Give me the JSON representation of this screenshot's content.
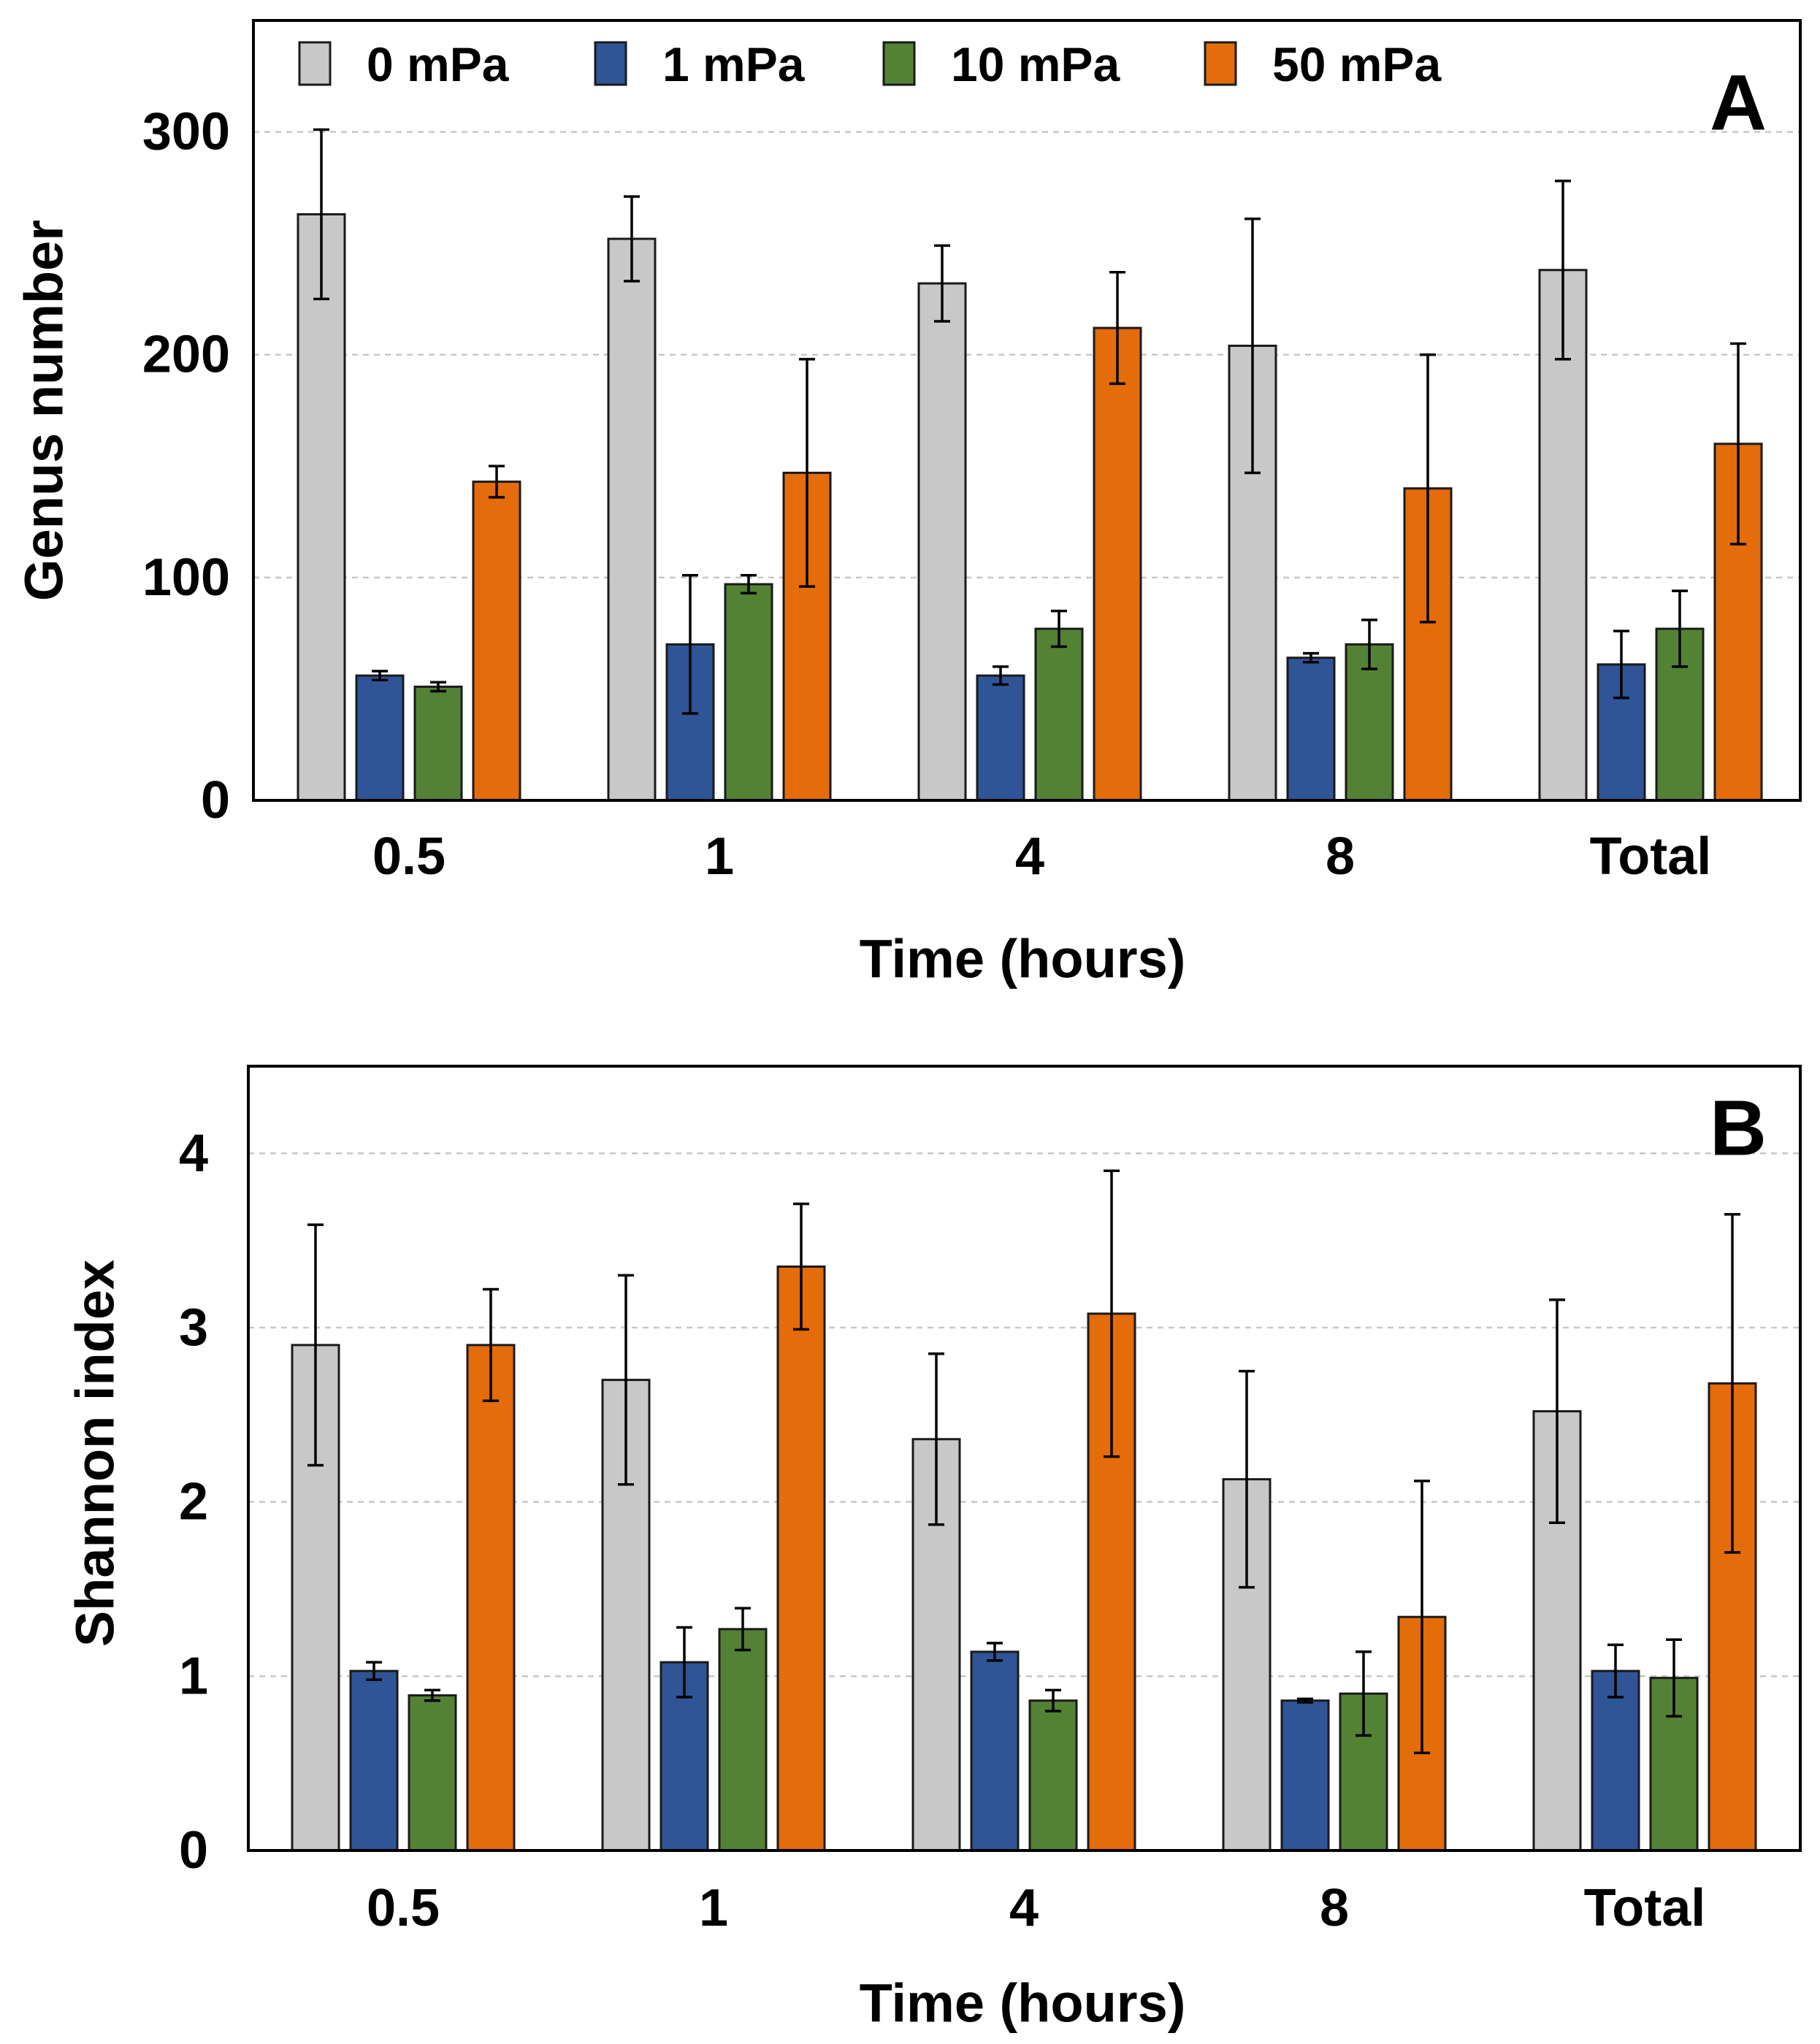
{
  "series_colors": [
    "#c8c8c8",
    "#2f5597",
    "#548235",
    "#e46c0a"
  ],
  "legend": [
    "0 mPa",
    "1 mPa",
    "10 mPa",
    "50 mPa"
  ],
  "chart_data": [
    {
      "type": "bar",
      "panel": "A",
      "title": "",
      "xlabel": "Time (hours)",
      "ylabel": "Genus number",
      "categories": [
        "0.5",
        "1",
        "4",
        "8",
        "Total"
      ],
      "ylim": [
        0,
        350
      ],
      "yticks": [
        0,
        100,
        200,
        300
      ],
      "grid": true,
      "legend_position": "top",
      "series": [
        {
          "name": "0 mPa",
          "values": [
            263,
            252,
            232,
            204,
            238
          ],
          "errors": [
            38,
            19,
            17,
            57,
            40
          ]
        },
        {
          "name": "1 mPa",
          "values": [
            56,
            70,
            56,
            64,
            61
          ],
          "errors": [
            2,
            31,
            4,
            2,
            15
          ]
        },
        {
          "name": "10 mPa",
          "values": [
            51,
            97,
            77,
            70,
            77
          ],
          "errors": [
            2,
            4,
            8,
            11,
            17
          ]
        },
        {
          "name": "50 mPa",
          "values": [
            143,
            147,
            212,
            140,
            160
          ],
          "errors": [
            7,
            51,
            25,
            60,
            45
          ]
        }
      ]
    },
    {
      "type": "bar",
      "panel": "B",
      "title": "",
      "xlabel": "Time (hours)",
      "ylabel": "Shannon index",
      "categories": [
        "0.5",
        "1",
        "4",
        "8",
        "Total"
      ],
      "ylim": [
        0,
        4.5
      ],
      "yticks": [
        0,
        1,
        2,
        3,
        4
      ],
      "grid": true,
      "series": [
        {
          "name": "0 mPa",
          "values": [
            2.9,
            2.7,
            2.36,
            2.13,
            2.52
          ],
          "errors": [
            0.69,
            0.6,
            0.49,
            0.62,
            0.64
          ]
        },
        {
          "name": "1 mPa",
          "values": [
            1.03,
            1.08,
            1.14,
            0.86,
            1.03
          ],
          "errors": [
            0.05,
            0.2,
            0.05,
            0.01,
            0.15
          ]
        },
        {
          "name": "10 mPa",
          "values": [
            0.89,
            1.27,
            0.86,
            0.9,
            0.99
          ],
          "errors": [
            0.03,
            0.12,
            0.06,
            0.24,
            0.22
          ]
        },
        {
          "name": "50 mPa",
          "values": [
            2.9,
            3.35,
            3.08,
            1.34,
            2.68
          ],
          "errors": [
            0.32,
            0.36,
            0.82,
            0.78,
            0.97
          ]
        }
      ]
    }
  ]
}
